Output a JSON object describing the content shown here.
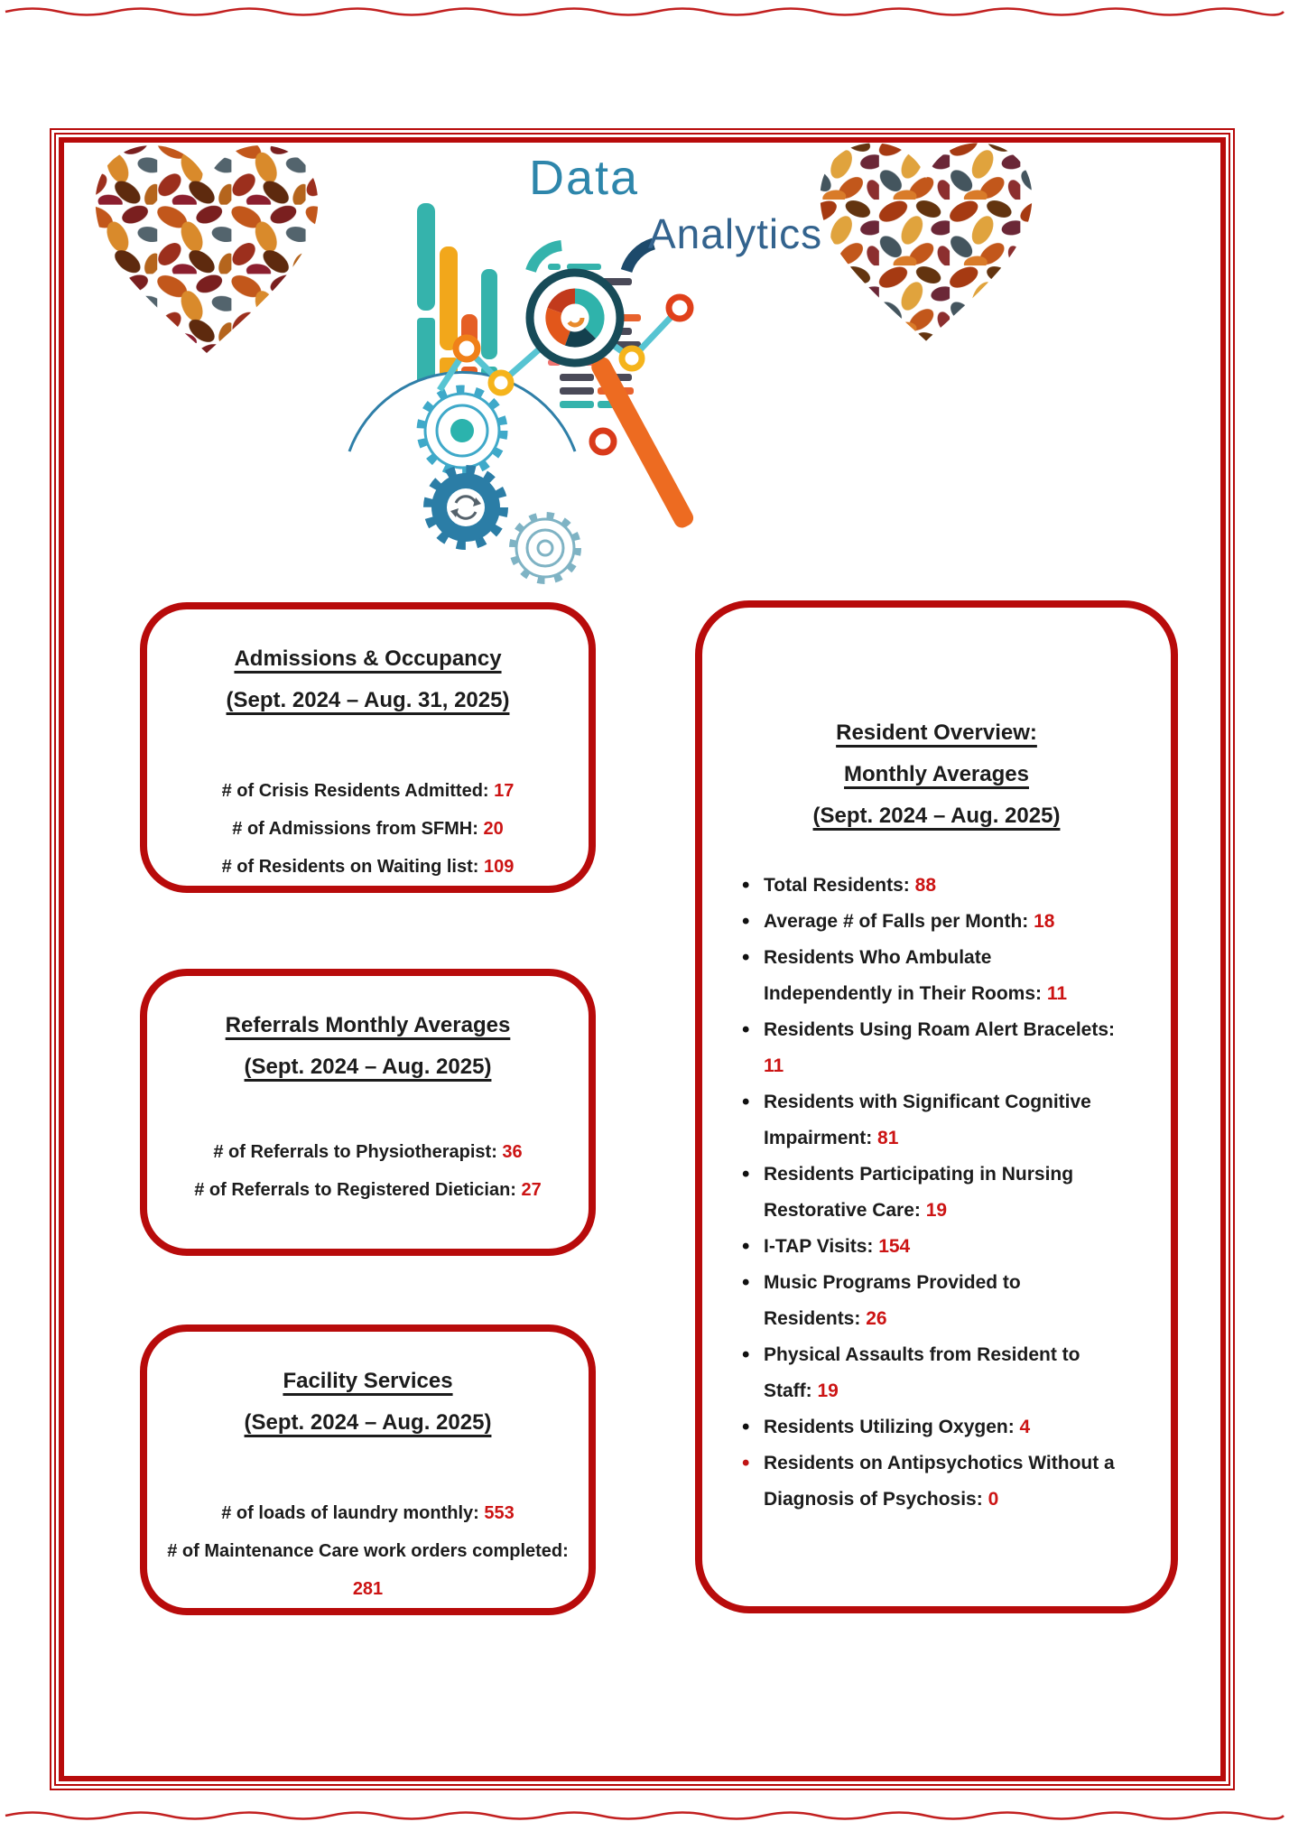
{
  "header": {
    "title_word1": "Data",
    "title_word2": "Analytics",
    "left_heart_icon": "autumn-leaves-heart",
    "right_heart_icon": "autumn-leaves-heart",
    "graphic_icons": [
      "bar-chart-icon",
      "report-lines-icon",
      "gears-icon",
      "magnifier-donut-chart-icon",
      "trend-line-icon"
    ]
  },
  "colors": {
    "frame_red": "#b80b0b",
    "value_red": "#cc1414",
    "teal": "#35b3ac",
    "amber": "#f2a71b",
    "orange": "#e8622d",
    "blue": "#2e86ab"
  },
  "boxes": [
    {
      "id": "admissions",
      "title_lines": [
        "Admissions & Occupancy",
        "(Sept. 2024 – Aug. 31, 2025)"
      ],
      "stats": [
        {
          "label": "# of Crisis Residents Admitted:",
          "value": "17"
        },
        {
          "label": "# of Admissions from SFMH:",
          "value": "20"
        },
        {
          "label": "# of Residents on Waiting list:",
          "value": "109"
        }
      ]
    },
    {
      "id": "referrals",
      "title_lines": [
        "Referrals Monthly Averages",
        "(Sept. 2024 – Aug. 2025)"
      ],
      "stats": [
        {
          "label": "# of Referrals to Physiotherapist:",
          "value": "36"
        },
        {
          "label": "# of Referrals to Registered Dietician:",
          "value": "27"
        }
      ]
    },
    {
      "id": "facility",
      "title_lines": [
        "Facility Services",
        "(Sept. 2024 – Aug. 2025)"
      ],
      "stats": [
        {
          "label": "# of loads of laundry monthly:",
          "value": "553"
        },
        {
          "label": "# of Maintenance Care work orders completed:",
          "value": "281"
        }
      ]
    }
  ],
  "resident_overview": {
    "title_lines": [
      "Resident Overview:",
      "Monthly Averages",
      "(Sept. 2024 – Aug. 2025)"
    ],
    "bullets": [
      {
        "label": "Total Residents:",
        "value": "88"
      },
      {
        "label": "Average # of Falls per Month:",
        "value": "18"
      },
      {
        "label": "Residents Who Ambulate Independently in Their Rooms:",
        "value": "11"
      },
      {
        "label": "Residents Using Roam Alert Bracelets:",
        "value": "11"
      },
      {
        "label": "Residents with Significant Cognitive Impairment:",
        "value": "81"
      },
      {
        "label": "Residents Participating in Nursing Restorative Care:",
        "value": "19"
      },
      {
        "label": "I-TAP Visits:",
        "value": "154"
      },
      {
        "label": "Music Programs Provided to Residents:",
        "value": "26"
      },
      {
        "label": "Physical Assaults from Resident to Staff:",
        "value": "19"
      },
      {
        "label": "Residents Utilizing Oxygen:",
        "value": "4"
      },
      {
        "label": "Residents on Antipsychotics Without a Diagnosis of Psychosis:",
        "value": "0",
        "bullet_red": true
      }
    ]
  }
}
